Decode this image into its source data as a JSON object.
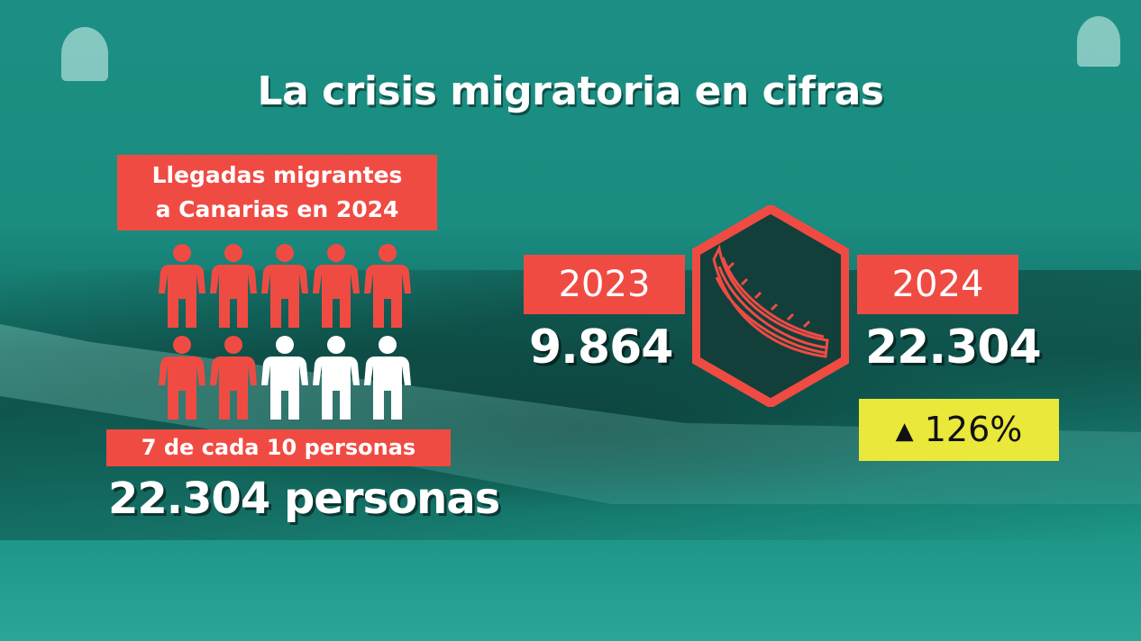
{
  "title": "La crisis migratoria en cifras",
  "left_panel": {
    "label_line1": "Llegadas migrantes",
    "label_line2": "a Canarias en 2024",
    "people_total": 10,
    "people_highlighted": 7,
    "ratio_label": "7 de cada 10 personas",
    "total_label": "22.304 personas"
  },
  "comparison": {
    "year_a": "2023",
    "value_a": "9.864",
    "year_b": "2024",
    "value_b": "22.304",
    "change_icon": "triangle-up-icon",
    "change_symbol": "▲",
    "change_value": "126%",
    "center_icon": "boat-icon"
  },
  "colors": {
    "accent_red": "#f04b43",
    "highlight_yellow": "#e9e83b",
    "background_teal": "#1a8c80",
    "person_off": "#ffffff"
  }
}
